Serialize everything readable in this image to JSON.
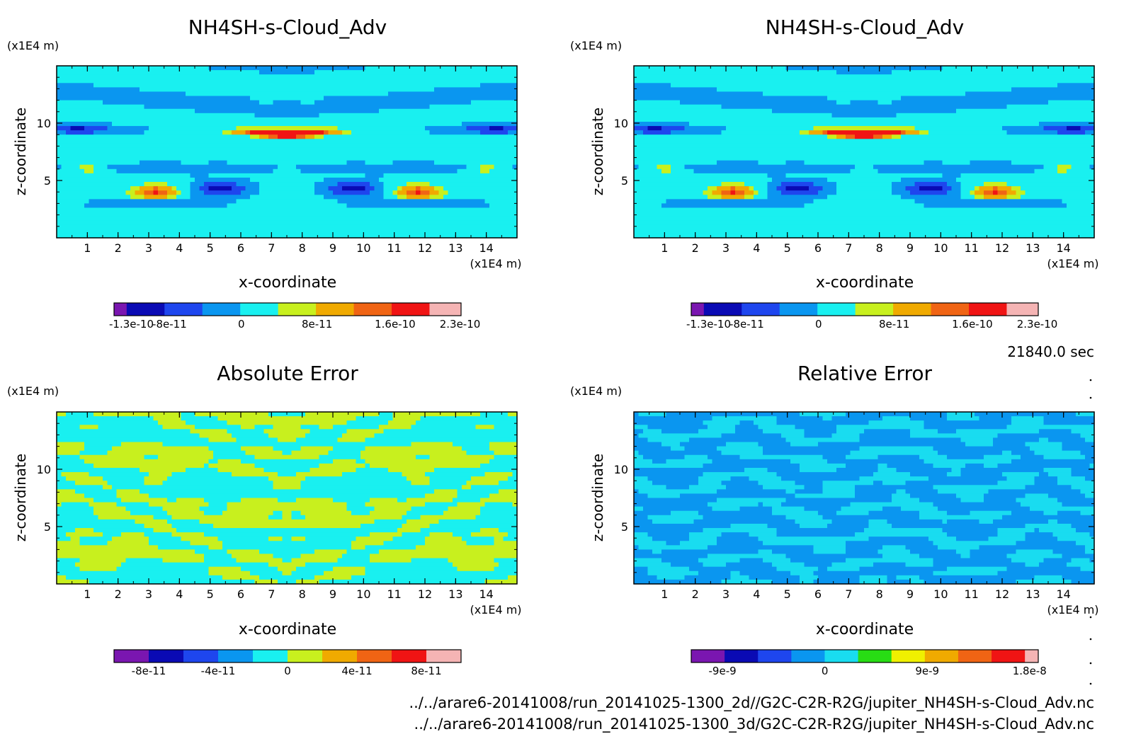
{
  "time_label": "21840.0 sec",
  "files": [
    "../../arare6-20141008/run_20141025-1300_2d//G2C-C2R-R2G/jupiter_NH4SH-s-Cloud_Adv.nc",
    "../../arare6-20141008/run_20141025-1300_3d/G2C-C2R-R2G/jupiter_NH4SH-s-Cloud_Adv.nc"
  ],
  "chart_data": [
    {
      "type": "heatmap",
      "title": "NH4SH-s-Cloud_Adv",
      "xlabel": "x-coordinate",
      "ylabel": "z-coordinate",
      "x_unit": "(x1E4 m)",
      "y_unit": "(x1E4 m)",
      "xlim": [
        0,
        15
      ],
      "ylim": [
        0,
        15
      ],
      "x_ticks": [
        "1",
        "2",
        "3",
        "4",
        "5",
        "6",
        "7",
        "8",
        "9",
        "10",
        "11",
        "12",
        "13",
        "14"
      ],
      "y_ticks": [
        "5",
        "10"
      ],
      "pattern": "field",
      "colorbar": {
        "colors": [
          "#7a16b0",
          "#0a0ab4",
          "#1e46ee",
          "#0a96f0",
          "#19f0f0",
          "#c8f01e",
          "#f0aa00",
          "#f06414",
          "#f01414",
          "#f5b4b4"
        ],
        "widths": [
          1,
          3,
          3,
          3,
          3,
          3,
          3,
          3,
          3,
          2.5
        ],
        "labels": [
          "-1.3e-10",
          "-8e-11",
          "0",
          "8e-11",
          "1.6e-10",
          "2.3e-10"
        ],
        "label_positions": [
          0.05,
          0.16,
          0.367,
          0.585,
          0.81,
          0.997
        ]
      }
    },
    {
      "type": "heatmap",
      "title": "NH4SH-s-Cloud_Adv",
      "xlabel": "x-coordinate",
      "ylabel": "z-coordinate",
      "x_unit": "(x1E4 m)",
      "y_unit": "(x1E4 m)",
      "xlim": [
        0,
        15
      ],
      "ylim": [
        0,
        15
      ],
      "x_ticks": [
        "1",
        "2",
        "3",
        "4",
        "5",
        "6",
        "7",
        "8",
        "9",
        "10",
        "11",
        "12",
        "13",
        "14"
      ],
      "y_ticks": [
        "5",
        "10"
      ],
      "pattern": "field",
      "colorbar": {
        "colors": [
          "#7a16b0",
          "#0a0ab4",
          "#1e46ee",
          "#0a96f0",
          "#19f0f0",
          "#c8f01e",
          "#f0aa00",
          "#f06414",
          "#f01414",
          "#f5b4b4"
        ],
        "widths": [
          1,
          3,
          3,
          3,
          3,
          3,
          3,
          3,
          3,
          2.5
        ],
        "labels": [
          "-1.3e-10",
          "-8e-11",
          "0",
          "8e-11",
          "1.6e-10",
          "2.3e-10"
        ],
        "label_positions": [
          0.05,
          0.16,
          0.367,
          0.585,
          0.81,
          0.997
        ]
      }
    },
    {
      "type": "heatmap",
      "title": "Absolute Error",
      "xlabel": "x-coordinate",
      "ylabel": "z-coordinate",
      "x_unit": "(x1E4 m)",
      "y_unit": "(x1E4 m)",
      "xlim": [
        0,
        15
      ],
      "ylim": [
        0,
        15
      ],
      "x_ticks": [
        "1",
        "2",
        "3",
        "4",
        "5",
        "6",
        "7",
        "8",
        "9",
        "10",
        "11",
        "12",
        "13",
        "14"
      ],
      "y_ticks": [
        "5",
        "10"
      ],
      "pattern": "abs",
      "colorbar": {
        "colors": [
          "#7a16b0",
          "#0a0ab4",
          "#1e46ee",
          "#0a96f0",
          "#19f0f0",
          "#c8f01e",
          "#f0aa00",
          "#f06414",
          "#f01414",
          "#f5b4b4"
        ],
        "widths": [
          1,
          1,
          1,
          1,
          1,
          1,
          1,
          1,
          1,
          1
        ],
        "labels": [
          "-8e-11",
          "-4e-11",
          "0",
          "4e-11",
          "8e-11"
        ],
        "label_positions": [
          0.1,
          0.3,
          0.5,
          0.7,
          0.9
        ]
      }
    },
    {
      "type": "heatmap",
      "title": "Relative Error",
      "xlabel": "x-coordinate",
      "ylabel": "z-coordinate",
      "x_unit": "(x1E4 m)",
      "y_unit": "(x1E4 m)",
      "xlim": [
        0,
        15
      ],
      "ylim": [
        0,
        15
      ],
      "x_ticks": [
        "1",
        "2",
        "3",
        "4",
        "5",
        "6",
        "7",
        "8",
        "9",
        "10",
        "11",
        "12",
        "13",
        "14"
      ],
      "y_ticks": [
        "5",
        "10"
      ],
      "pattern": "rel",
      "colorbar": {
        "colors": [
          "#7a16b0",
          "#0a0ab4",
          "#1e46ee",
          "#0a96f0",
          "#19dcf0",
          "#28dc14",
          "#f0f000",
          "#f0aa00",
          "#f06414",
          "#f01414",
          "#f5b4b4"
        ],
        "widths": [
          2.5,
          2.5,
          2.5,
          2.5,
          2.5,
          2.5,
          2.5,
          2.5,
          2.5,
          2.5,
          1
        ],
        "labels": [
          "-9e-9",
          "0",
          "9e-9",
          "1.8e-8"
        ],
        "label_positions": [
          0.09,
          0.385,
          0.68,
          0.975
        ]
      }
    }
  ]
}
